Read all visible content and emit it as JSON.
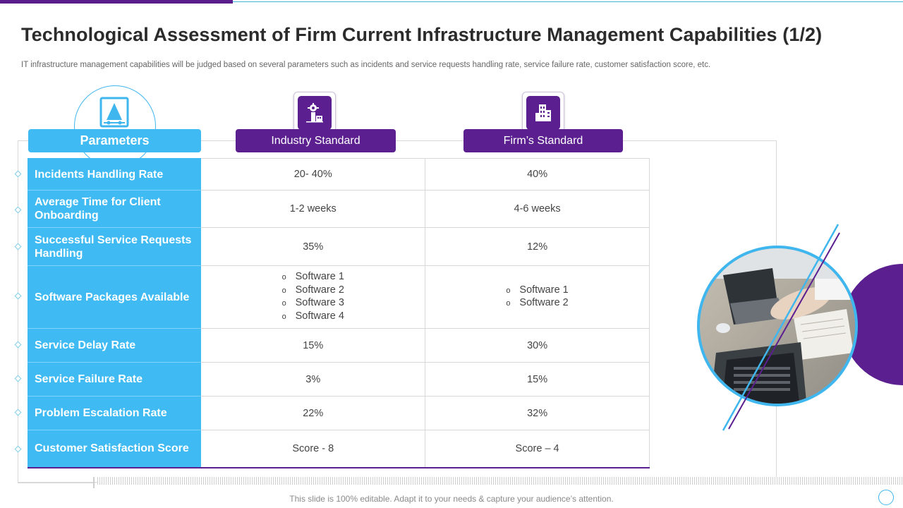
{
  "slide": {
    "title": "Technological Assessment of Firm Current Infrastructure Management Capabilities (1/2)",
    "subtitle": "IT infrastructure management capabilities will be judged based on several parameters such as incidents and service requests handling rate, service failure rate, customer satisfaction score, etc.",
    "footer": "This slide is 100% editable. Adapt it to your needs & capture your audience’s attention."
  },
  "headers": {
    "parameters": "Parameters",
    "industry": "Industry  Standard",
    "firm": "Firm’s Standard",
    "parameters_icon": "document-chart-icon",
    "industry_icon": "factory-icon",
    "firm_icon": "office-building-icon"
  },
  "rows": [
    {
      "param": "Incidents Handling Rate",
      "industry": "20- 40%",
      "firm": "40%"
    },
    {
      "param": "Average Time for Client Onboarding",
      "industry": "1-2 weeks",
      "firm": "4-6 weeks"
    },
    {
      "param": "Successful Service Requests Handling",
      "industry": "35%",
      "firm": "12%"
    },
    {
      "param": "Software Packages Available",
      "industry_list": [
        "Software 1",
        "Software 2",
        "Software 3",
        "Software 4"
      ],
      "firm_list": [
        "Software 1",
        "Software 2"
      ]
    },
    {
      "param": "Service Delay Rate",
      "industry": "15%",
      "firm": "30%"
    },
    {
      "param": "Service Failure Rate",
      "industry": "3%",
      "firm": "15%"
    },
    {
      "param": "Problem Escalation Rate",
      "industry": "22%",
      "firm": "32%"
    },
    {
      "param": "Customer Satisfaction Score",
      "industry": "Score - 8",
      "firm": "Score – 4"
    }
  ],
  "bullet_symbol": "o",
  "colors": {
    "accent_blue": "#3fbaf2",
    "accent_purple": "#5b1f90",
    "line": "#d8d8d8"
  },
  "decoration": {
    "photo": "laptop-meeting-photo"
  }
}
